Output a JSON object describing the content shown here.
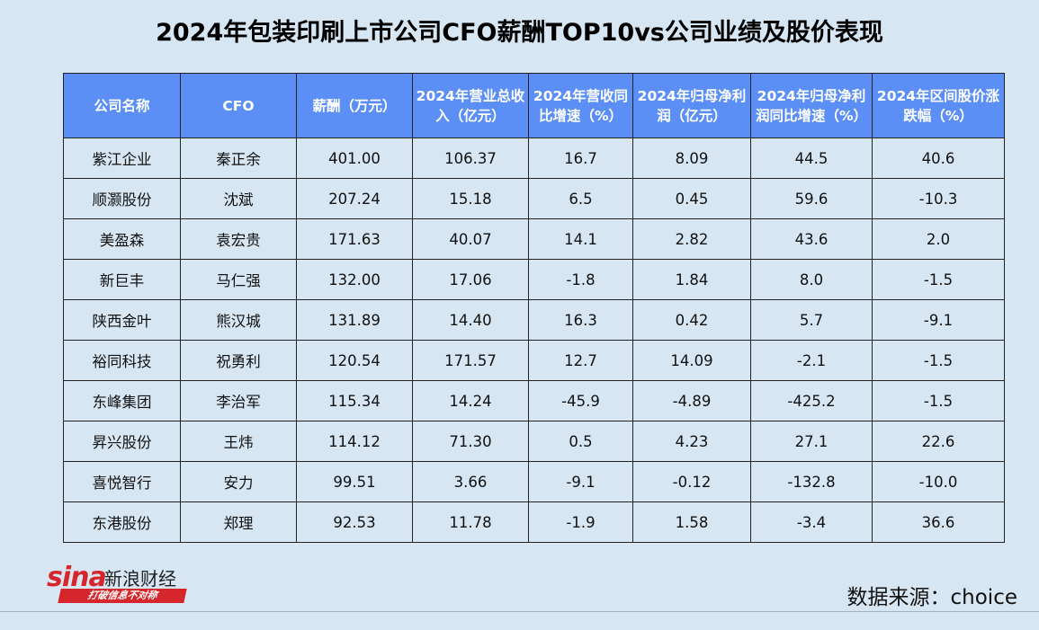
{
  "title": "2024年包装印刷上市公司CFO薪酬TOP10vs公司业绩及股价表现",
  "source": "数据来源：choice",
  "logo": {
    "brand": "sina",
    "brand_cn": "新浪财经",
    "tagline": "打破信息不对称"
  },
  "chart_data": {
    "type": "table",
    "title": "2024年包装印刷上市公司CFO薪酬TOP10vs公司业绩及股价表现",
    "columns": [
      "公司名称",
      "CFO",
      "薪酬（万元）",
      "2024年营业总收入（亿元）",
      "2024年营收同比增速（%）",
      "2024年归母净利润（亿元）",
      "2024年归母净利润同比增速（%）",
      "2024年区间股价涨跌幅（%）"
    ],
    "rows": [
      [
        "紫江企业",
        "秦正余",
        "401.00",
        "106.37",
        "16.7",
        "8.09",
        "44.5",
        "40.6"
      ],
      [
        "顺灏股份",
        "沈斌",
        "207.24",
        "15.18",
        "6.5",
        "0.45",
        "59.6",
        "-10.3"
      ],
      [
        "美盈森",
        "袁宏贵",
        "171.63",
        "40.07",
        "14.1",
        "2.82",
        "43.6",
        "2.0"
      ],
      [
        "新巨丰",
        "马仁强",
        "132.00",
        "17.06",
        "-1.8",
        "1.84",
        "8.0",
        "-1.5"
      ],
      [
        "陕西金叶",
        "熊汉城",
        "131.89",
        "14.40",
        "16.3",
        "0.42",
        "5.7",
        "-9.1"
      ],
      [
        "裕同科技",
        "祝勇利",
        "120.54",
        "171.57",
        "12.7",
        "14.09",
        "-2.1",
        "-1.5"
      ],
      [
        "东峰集团",
        "李治军",
        "115.34",
        "14.24",
        "-45.9",
        "-4.89",
        "-425.2",
        "-1.5"
      ],
      [
        "昇兴股份",
        "王炜",
        "114.12",
        "71.30",
        "0.5",
        "4.23",
        "27.1",
        "22.6"
      ],
      [
        "喜悦智行",
        "安力",
        "99.51",
        "3.66",
        "-9.1",
        "-0.12",
        "-132.8",
        "-10.0"
      ],
      [
        "东港股份",
        "郑理",
        "92.53",
        "11.78",
        "-1.9",
        "1.58",
        "-3.4",
        "36.6"
      ]
    ]
  }
}
